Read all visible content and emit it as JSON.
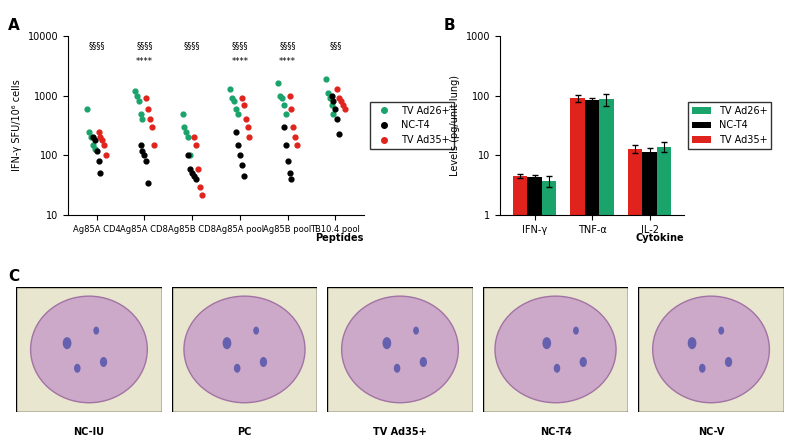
{
  "chart_data": [
    {
      "type": "scatter",
      "title": "A",
      "categories": [
        "Ag85A CD4",
        "Ag85A CD8",
        "Ag85B CD8",
        "Ag85A pool",
        "Ag85B pool",
        "TB10.4 pool"
      ],
      "x_label": "Peptides",
      "y_label": "IFN-γ SFU/10⁶ cells",
      "log": "y",
      "ylim": [
        10,
        10000
      ],
      "yticks": [
        10,
        100,
        1000,
        10000
      ],
      "legend": "right",
      "marker": "o",
      "series": [
        {
          "name": "TV Ad26+",
          "color": "#1aa36b",
          "values": [
            [
              600,
              250,
              200,
              150,
              130
            ],
            [
              1200,
              1000,
              800,
              500,
              400
            ],
            [
              500,
              300,
              250,
              200,
              100
            ],
            [
              1300,
              900,
              800,
              600,
              500
            ],
            [
              1600,
              1000,
              900,
              700,
              500
            ],
            [
              1900,
              1100,
              900,
              700,
              500
            ]
          ]
        },
        {
          "name": "NC-T4",
          "color": "#000000",
          "values": [
            [
              200,
              180,
              120,
              80,
              50
            ],
            [
              150,
              120,
              100,
              80,
              35
            ],
            [
              100,
              60,
              50,
              45,
              40
            ],
            [
              250,
              150,
              100,
              70,
              45
            ],
            [
              300,
              150,
              80,
              50,
              40
            ],
            [
              1000,
              800,
              600,
              400,
              230
            ]
          ]
        },
        {
          "name": "TV Ad35+",
          "color": "#e0231c",
          "values": [
            [
              250,
              200,
              180,
              150,
              100
            ],
            [
              900,
              600,
              400,
              300,
              150
            ],
            [
              200,
              150,
              60,
              30,
              22
            ],
            [
              900,
              700,
              400,
              300,
              200
            ],
            [
              1000,
              600,
              300,
              200,
              150
            ],
            [
              1300,
              900,
              800,
              700,
              600
            ]
          ]
        }
      ],
      "annotations": [
        {
          "category": "Ag85A CD4",
          "texts": [
            "§§§§"
          ]
        },
        {
          "category": "Ag85A CD8",
          "texts": [
            "§§§§",
            "****"
          ]
        },
        {
          "category": "Ag85B CD8",
          "texts": [
            "§§§§"
          ]
        },
        {
          "category": "Ag85A pool",
          "texts": [
            "§§§§",
            "****"
          ]
        },
        {
          "category": "Ag85B pool",
          "texts": [
            "§§§§",
            "****"
          ]
        },
        {
          "category": "TB10.4 pool",
          "texts": [
            "§§§"
          ]
        }
      ]
    },
    {
      "type": "bar",
      "title": "B",
      "categories": [
        "IFN-γ",
        "TNF-α",
        "IL-2"
      ],
      "x_label": "Cytokine",
      "y_label": "Levels (pg/unit lung)",
      "log": "y",
      "ylim": [
        1,
        1000
      ],
      "yticks": [
        1,
        10,
        100,
        1000
      ],
      "legend": "right",
      "series": [
        {
          "name": "TV Ad26+",
          "color": "#1aa36b",
          "values": [
            3.7,
            88,
            14
          ],
          "errors": [
            0.8,
            20,
            2.5
          ]
        },
        {
          "name": "NC-T4",
          "color": "#000000",
          "values": [
            4.3,
            85,
            11.5
          ],
          "errors": [
            0.3,
            5,
            2
          ]
        },
        {
          "name": "TV Ad35+",
          "color": "#e0231c",
          "values": [
            4.5,
            90,
            13
          ],
          "errors": [
            0.3,
            12,
            2
          ]
        }
      ]
    },
    {
      "type": "images",
      "title": "C",
      "labels": [
        "NC-IU",
        "PC",
        "TV Ad35+",
        "NC-T4",
        "NC-V"
      ]
    }
  ]
}
